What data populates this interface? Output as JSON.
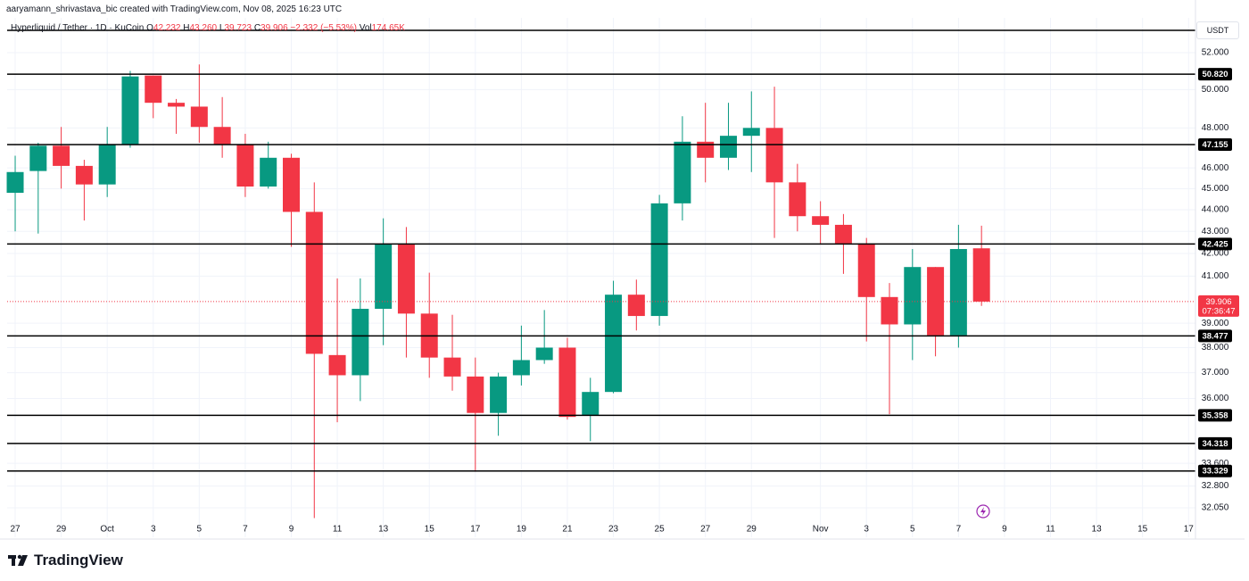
{
  "header": {
    "credit": "aaryamann_shrivastava_bic created with TradingView.com, Nov 08, 2025 16:23 UTC"
  },
  "legend": {
    "symbol": "Hyperliquid / Tether · 1D · KuCoin",
    "open_label": "O",
    "open": "42.232",
    "high_label": "H",
    "high": "43.260",
    "low_label": "L",
    "low": "39.723",
    "close_label": "C",
    "close": "39.906",
    "change": "−2.332 (−5.53%)",
    "volume_label": "Vol",
    "volume": "174.65K"
  },
  "currency": "USDT",
  "brand": "TradingView",
  "chart_data": {
    "type": "candlestick",
    "open": [
      44.8,
      45.85,
      47.1,
      46.1,
      45.2,
      47.15,
      50.75,
      49.3,
      49.1,
      48.05,
      47.15,
      45.1,
      46.5,
      43.9,
      37.7,
      36.9,
      39.6,
      42.4,
      39.4,
      37.6,
      36.85,
      35.45,
      36.9,
      37.5,
      38.0,
      35.35,
      36.25,
      40.2,
      39.3,
      44.3,
      47.3,
      46.5,
      47.6,
      48.0,
      45.3,
      43.7,
      43.3,
      42.45,
      40.1,
      38.95,
      41.4,
      38.5,
      42.232
    ],
    "high": [
      46.6,
      47.25,
      48.05,
      46.4,
      48.05,
      51.0,
      50.75,
      49.5,
      51.35,
      49.6,
      47.7,
      47.3,
      46.7,
      45.3,
      40.9,
      40.9,
      43.6,
      43.2,
      41.15,
      39.35,
      37.6,
      37.0,
      38.9,
      39.55,
      38.4,
      36.8,
      40.8,
      40.85,
      44.7,
      48.6,
      49.3,
      49.3,
      49.9,
      50.15,
      46.2,
      44.4,
      43.8,
      42.7,
      40.7,
      42.2,
      41.4,
      43.3,
      43.26
    ],
    "low": [
      43.0,
      42.9,
      45.0,
      43.5,
      44.6,
      47.0,
      48.5,
      47.7,
      47.25,
      46.5,
      44.6,
      45.0,
      42.3,
      31.7,
      35.1,
      35.9,
      38.1,
      37.6,
      36.8,
      36.3,
      33.3,
      34.6,
      36.5,
      37.35,
      35.2,
      34.4,
      36.2,
      38.7,
      38.9,
      43.5,
      45.3,
      45.9,
      45.8,
      42.7,
      43.0,
      42.4,
      41.1,
      38.25,
      35.4,
      37.5,
      37.65,
      38.0,
      39.723
    ],
    "close": [
      45.8,
      47.1,
      46.1,
      45.2,
      47.15,
      50.7,
      49.3,
      49.1,
      48.05,
      47.15,
      45.1,
      46.5,
      43.9,
      37.75,
      36.9,
      39.6,
      42.4,
      39.4,
      37.6,
      36.85,
      35.45,
      36.85,
      37.5,
      38.0,
      35.3,
      36.25,
      40.2,
      39.3,
      44.3,
      47.3,
      46.5,
      47.6,
      48.0,
      45.3,
      43.7,
      43.3,
      42.45,
      40.1,
      38.95,
      41.4,
      38.5,
      42.2,
      39.906
    ],
    "up_color": "#089981",
    "down_color": "#f23645",
    "log_scale": true,
    "grid": true,
    "ylim": [
      31.06,
      53.96
    ],
    "yticks": [
      {
        "value": 52,
        "label": "52.000"
      },
      {
        "value": 50,
        "label": "50.000"
      },
      {
        "value": 48,
        "label": "48.000"
      },
      {
        "value": 46,
        "label": "46.000"
      },
      {
        "value": 45,
        "label": "45.000"
      },
      {
        "value": 44,
        "label": "44.000"
      },
      {
        "value": 43,
        "label": "43.000"
      },
      {
        "value": 42,
        "label": "42.000"
      },
      {
        "value": 41,
        "label": "41.000"
      },
      {
        "value": 39,
        "label": "39.000"
      },
      {
        "value": 38,
        "label": "38.000"
      },
      {
        "value": 37,
        "label": "37.000"
      },
      {
        "value": 36,
        "label": "36.000"
      },
      {
        "value": 33.6,
        "label": "33.600"
      },
      {
        "value": 32.8,
        "label": "32.800"
      },
      {
        "value": 32.05,
        "label": "32.050"
      }
    ],
    "xlim": [
      -0.35,
      51.3
    ],
    "xticks": [
      {
        "value": 0,
        "label": "27"
      },
      {
        "value": 2,
        "label": "29"
      },
      {
        "value": 4,
        "label": "Oct"
      },
      {
        "value": 6,
        "label": "3"
      },
      {
        "value": 8,
        "label": "5"
      },
      {
        "value": 10,
        "label": "7"
      },
      {
        "value": 12,
        "label": "9"
      },
      {
        "value": 14,
        "label": "11"
      },
      {
        "value": 16,
        "label": "13"
      },
      {
        "value": 18,
        "label": "15"
      },
      {
        "value": 20,
        "label": "17"
      },
      {
        "value": 22,
        "label": "19"
      },
      {
        "value": 24,
        "label": "21"
      },
      {
        "value": 26,
        "label": "23"
      },
      {
        "value": 28,
        "label": "25"
      },
      {
        "value": 30,
        "label": "27"
      },
      {
        "value": 32,
        "label": "29"
      },
      {
        "value": 35,
        "label": "Nov"
      },
      {
        "value": 37,
        "label": "3"
      },
      {
        "value": 39,
        "label": "5"
      },
      {
        "value": 41,
        "label": "7"
      },
      {
        "value": 43,
        "label": "9"
      },
      {
        "value": 45,
        "label": "11"
      },
      {
        "value": 47,
        "label": "13"
      },
      {
        "value": 49,
        "label": "15"
      },
      {
        "value": 51,
        "label": "17"
      }
    ],
    "levels": [
      {
        "value": 53.25
      },
      {
        "value": 50.82,
        "label": "50.820"
      },
      {
        "value": 47.155,
        "label": "47.155"
      },
      {
        "value": 42.425,
        "label": "42.425"
      },
      {
        "value": 38.477,
        "label": "38.477"
      },
      {
        "value": 35.358,
        "label": "35.358"
      },
      {
        "value": 34.318,
        "label": "34.318"
      },
      {
        "value": 33.329,
        "label": "33.329"
      }
    ],
    "last_price": {
      "value": 39.906,
      "label": "39.906",
      "countdown": "07:36:47"
    }
  }
}
